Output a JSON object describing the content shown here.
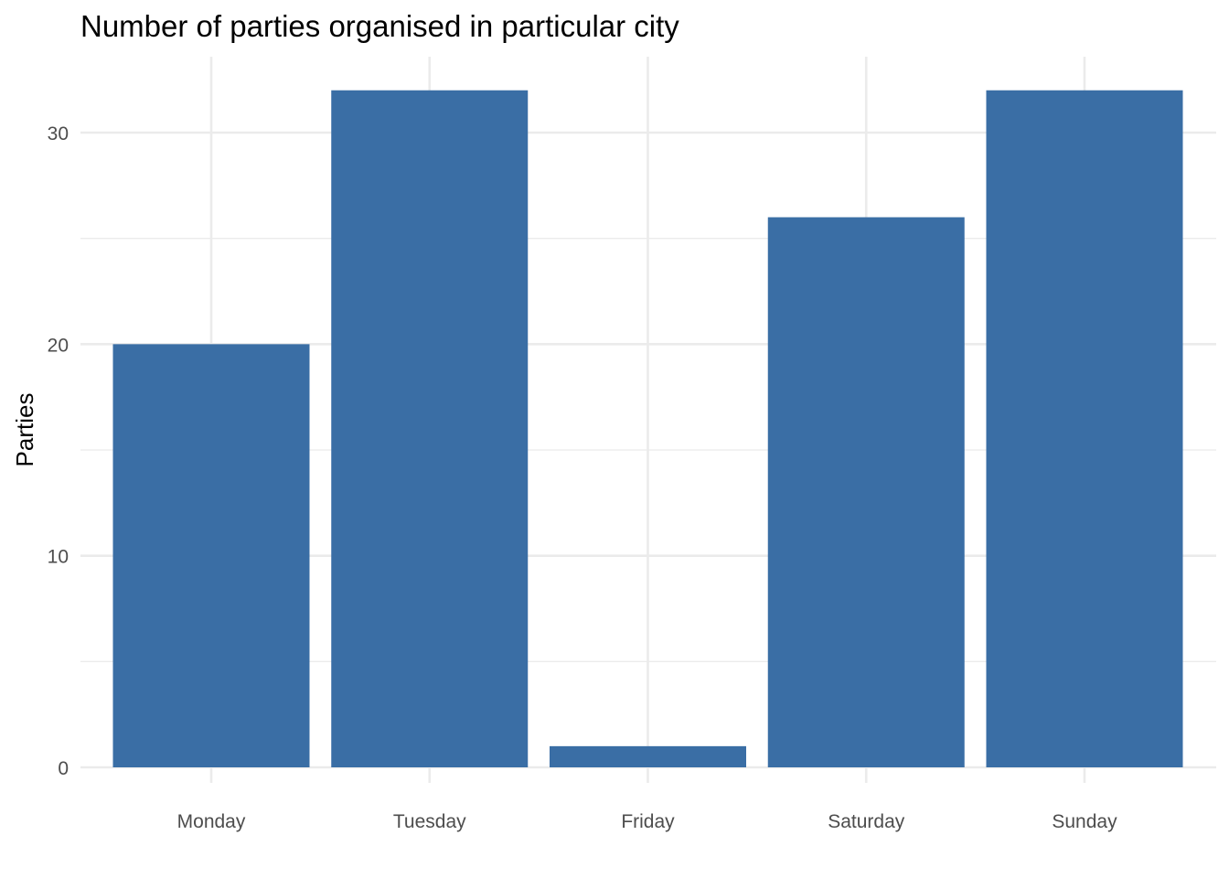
{
  "chart_data": {
    "type": "bar",
    "title": "Number of parties organised in particular city",
    "xlabel": "",
    "ylabel": "Parties",
    "categories": [
      "Monday",
      "Tuesday",
      "Friday",
      "Saturday",
      "Sunday"
    ],
    "values": [
      20,
      32,
      1,
      26,
      32
    ],
    "ylim": [
      0,
      33.6
    ],
    "yticks": [
      0,
      10,
      20,
      30
    ],
    "yticks_minor": [
      5,
      15,
      25
    ],
    "grid": true,
    "legend": "none",
    "bar_color": "#3a6ea5",
    "grid_color": "#ebebeb"
  }
}
